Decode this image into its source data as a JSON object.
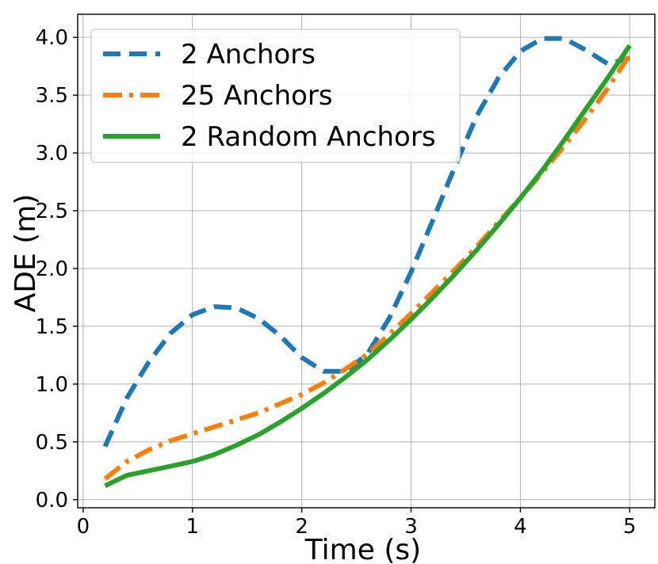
{
  "chart_data": {
    "type": "line",
    "xlabel": "Time (s)",
    "ylabel": "ADE (m)",
    "xlim": [
      -0.05,
      5.23
    ],
    "ylim": [
      -0.07,
      4.2
    ],
    "xticks": [
      0,
      1,
      2,
      3,
      4,
      5
    ],
    "xtick_labels": [
      "0",
      "1",
      "2",
      "3",
      "4",
      "5"
    ],
    "yticks": [
      0.0,
      0.5,
      1.0,
      1.5,
      2.0,
      2.5,
      3.0,
      3.5,
      4.0
    ],
    "ytick_labels": [
      "0.0",
      "0.5",
      "1.0",
      "1.5",
      "2.0",
      "2.5",
      "3.0",
      "3.5",
      "4.0"
    ],
    "grid": true,
    "legend_position": "top-left",
    "series": [
      {
        "name": "2 Anchors",
        "color": "#1f77b4",
        "style": "dashed",
        "x": [
          0.2,
          0.4,
          0.6,
          0.8,
          1.0,
          1.2,
          1.4,
          1.6,
          1.8,
          2.0,
          2.2,
          2.4,
          2.6,
          2.8,
          3.0,
          3.2,
          3.4,
          3.6,
          3.8,
          4.0,
          4.2,
          4.4,
          4.6,
          4.8,
          5.0
        ],
        "y": [
          0.46,
          0.88,
          1.19,
          1.44,
          1.6,
          1.67,
          1.66,
          1.57,
          1.42,
          1.23,
          1.11,
          1.11,
          1.26,
          1.57,
          1.97,
          2.42,
          2.88,
          3.32,
          3.65,
          3.88,
          3.99,
          3.99,
          3.89,
          3.77,
          3.82
        ]
      },
      {
        "name": "25 Anchors",
        "color": "#ff7f0e",
        "style": "dashdot",
        "x": [
          0.2,
          0.4,
          0.6,
          0.8,
          1.0,
          1.2,
          1.4,
          1.6,
          1.8,
          2.0,
          2.2,
          2.4,
          2.6,
          2.8,
          3.0,
          3.2,
          3.4,
          3.6,
          3.8,
          4.0,
          4.2,
          4.4,
          4.6,
          4.8,
          5.0
        ],
        "y": [
          0.18,
          0.33,
          0.43,
          0.51,
          0.57,
          0.63,
          0.69,
          0.75,
          0.83,
          0.91,
          1.01,
          1.13,
          1.26,
          1.43,
          1.61,
          1.8,
          1.99,
          2.19,
          2.4,
          2.61,
          2.83,
          3.06,
          3.3,
          3.56,
          3.85
        ]
      },
      {
        "name": "2 Random Anchors",
        "color": "#2ca02c",
        "style": "solid",
        "x": [
          0.2,
          0.4,
          0.6,
          0.8,
          1.0,
          1.2,
          1.4,
          1.6,
          1.8,
          2.0,
          2.2,
          2.4,
          2.6,
          2.8,
          3.0,
          3.2,
          3.4,
          3.6,
          3.8,
          4.0,
          4.2,
          4.4,
          4.6,
          4.8,
          5.0
        ],
        "y": [
          0.12,
          0.21,
          0.25,
          0.29,
          0.33,
          0.39,
          0.47,
          0.56,
          0.67,
          0.79,
          0.92,
          1.06,
          1.21,
          1.38,
          1.56,
          1.75,
          1.95,
          2.16,
          2.38,
          2.61,
          2.85,
          3.11,
          3.38,
          3.65,
          3.93
        ]
      }
    ]
  }
}
